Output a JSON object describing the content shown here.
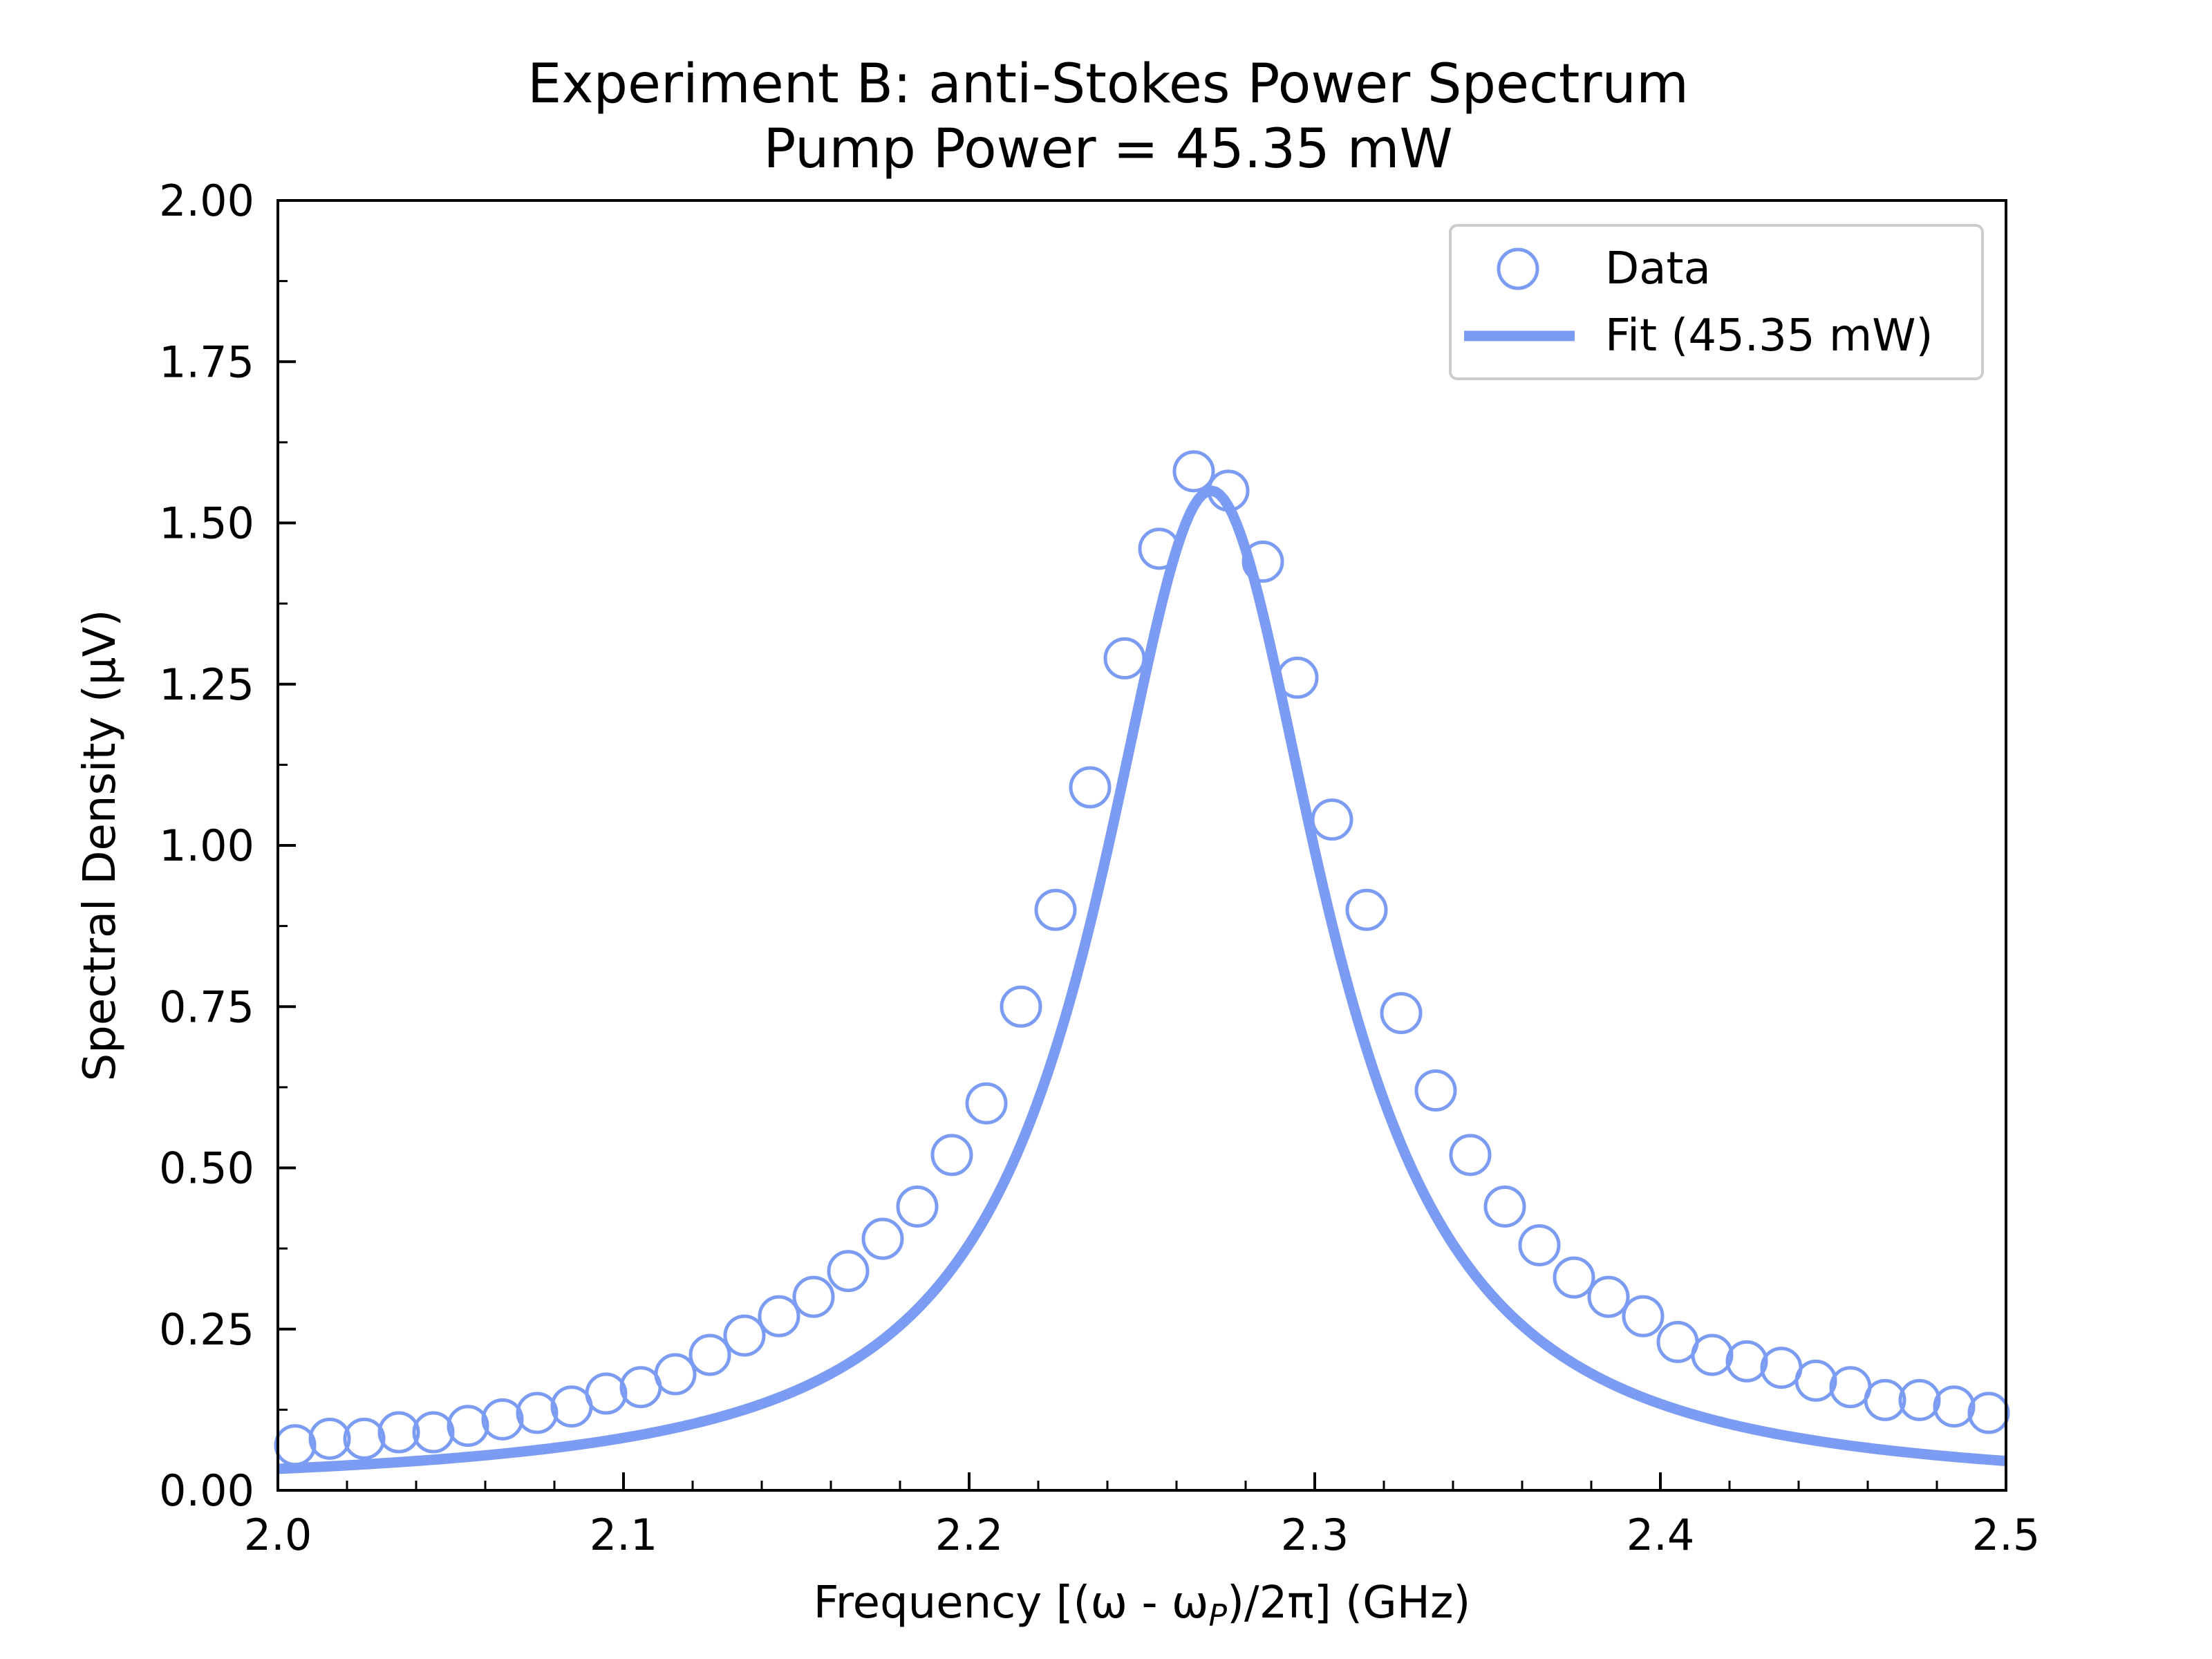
{
  "chart_data": {
    "type": "line",
    "title": "Experiment B: anti-Stokes Power Spectrum",
    "subtitle": "Pump Power = 45.35 mW",
    "xlabel": "Frequency [(ω - ωP)/2π] (GHz)",
    "ylabel": "Spectral Density (μV)",
    "xlim": [
      2.0,
      2.5
    ],
    "ylim": [
      0.0,
      2.0
    ],
    "xticks": [
      "2.0",
      "2.1",
      "2.2",
      "2.3",
      "2.4",
      "2.5"
    ],
    "yticks": [
      "0.00",
      "0.25",
      "0.50",
      "0.75",
      "1.00",
      "1.25",
      "1.50",
      "1.75",
      "2.00"
    ],
    "grid": false,
    "legend_position": "top-right",
    "color": "#7b9cf2",
    "series": [
      {
        "name": "Data",
        "kind": "scatter-open-circles",
        "x": [
          2.005,
          2.015,
          2.025,
          2.035,
          2.045,
          2.055,
          2.065,
          2.075,
          2.085,
          2.095,
          2.105,
          2.115,
          2.125,
          2.135,
          2.145,
          2.155,
          2.165,
          2.175,
          2.185,
          2.195,
          2.205,
          2.215,
          2.225,
          2.235,
          2.245,
          2.255,
          2.265,
          2.275,
          2.285,
          2.295,
          2.305,
          2.315,
          2.325,
          2.335,
          2.345,
          2.355,
          2.365,
          2.375,
          2.385,
          2.395,
          2.405,
          2.415,
          2.425,
          2.435,
          2.445,
          2.455,
          2.465,
          2.475,
          2.485,
          2.495
        ],
        "y": [
          0.07,
          0.08,
          0.08,
          0.09,
          0.09,
          0.1,
          0.11,
          0.12,
          0.13,
          0.15,
          0.16,
          0.18,
          0.21,
          0.24,
          0.27,
          0.3,
          0.34,
          0.39,
          0.44,
          0.52,
          0.6,
          0.75,
          0.9,
          1.09,
          1.29,
          1.46,
          1.58,
          1.55,
          1.44,
          1.26,
          1.04,
          0.9,
          0.74,
          0.62,
          0.52,
          0.44,
          0.38,
          0.33,
          0.3,
          0.27,
          0.23,
          0.21,
          0.2,
          0.19,
          0.17,
          0.16,
          0.14,
          0.14,
          0.13,
          0.12
        ]
      },
      {
        "name": "Fit (45.35 mW)",
        "kind": "lorentzian-fit-line",
        "center": 2.27,
        "half_width": 0.04,
        "amplitude": 1.55,
        "offset": 0.0
      }
    ]
  }
}
